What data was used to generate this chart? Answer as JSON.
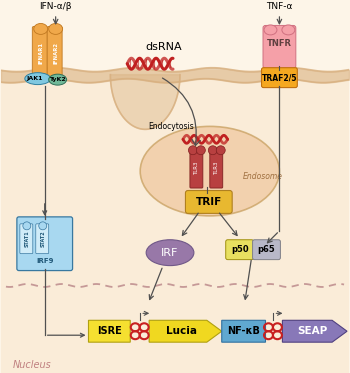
{
  "bg_color": "#fdf5e8",
  "cell_bg": "#faecd8",
  "colors": {
    "receptor_orange": "#f0a84a",
    "receptor_pink": "#f5a0a8",
    "traf_orange": "#f5a820",
    "jak1_blue": "#80c8e0",
    "tyk2_teal": "#70b898",
    "irf_purple": "#9878a8",
    "p50_yellow": "#e8e060",
    "p65_silver": "#b8b8c8",
    "isre_yellow": "#f5e030",
    "lucia_yellow": "#f0d820",
    "nfkb_blue": "#60a8d0",
    "seap_purple": "#8878b8",
    "trif_gold": "#e8b830",
    "endosome_bg": "#f0c8a0",
    "tlr_red": "#b84040",
    "arrow_color": "#505050",
    "dsrna_red": "#c02020",
    "membrane_color": "#d8b080",
    "promoter_red": "#c82020",
    "nucleus_dash": "#c09090"
  },
  "labels": {
    "ifn": "IFN-α/β",
    "tnf": "TNF-α",
    "dsrna": "dsRNA",
    "endocytosis": "Endocytosis",
    "endosome": "Endosome",
    "trif": "TRIF",
    "tlr3": "TLR3",
    "irf": "IRF",
    "p50": "p50",
    "p65": "p65",
    "isre": "ISRE",
    "lucia": "Lucia",
    "nfkb": "NF-κB",
    "seap": "SEAP",
    "nucleus": "Nucleus",
    "tnfr": "TNFR",
    "traf": "TRAF2/5",
    "jak1": "JAK1",
    "tyk2": "TyK2",
    "irf9": "IRF9",
    "ifnar1": "IFNAR1",
    "ifnar2": "IFNAR2"
  }
}
